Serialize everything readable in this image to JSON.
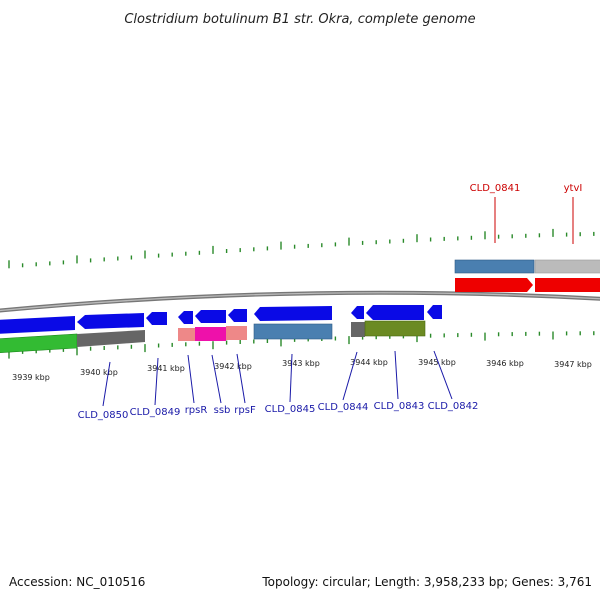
{
  "title": "Clostridium botulinum B1 str. Okra, complete genome",
  "footer": {
    "accession": "Accession: NC_010516",
    "topology": "Topology: circular; Length: 3,958,233 bp; Genes: 3,761"
  },
  "colors": {
    "backbone": "#888888",
    "tick": "#2a8a2a",
    "forward_label": "#cc0000",
    "reverse_label": "#1a1aa8",
    "gene_blue": "#0a0ae6",
    "cds_steel": "#4a7fb0",
    "cds_red": "#ee0000",
    "cds_gray": "#bbbbbb",
    "cds_green": "#33bb33",
    "cds_dark_gray": "#666666",
    "cds_salmon": "#ee8888",
    "cds_magenta": "#ee11aa",
    "cds_olive": "#6b8a22"
  },
  "kbp_labels": [
    "3939 kbp",
    "3940 kbp",
    "3941 kbp",
    "3942 kbp",
    "3943 kbp",
    "3944 kbp",
    "3945 kbp",
    "3946 kbp",
    "3947 kbp"
  ],
  "gene_labels": {
    "forward": [
      "CLD_0841",
      "ytvI"
    ],
    "reverse": [
      "CLD_0850",
      "CLD_0849",
      "rpsR",
      "ssb",
      "rpsF",
      "CLD_0845",
      "CLD_0844",
      "CLD_0843",
      "CLD_0842"
    ]
  }
}
